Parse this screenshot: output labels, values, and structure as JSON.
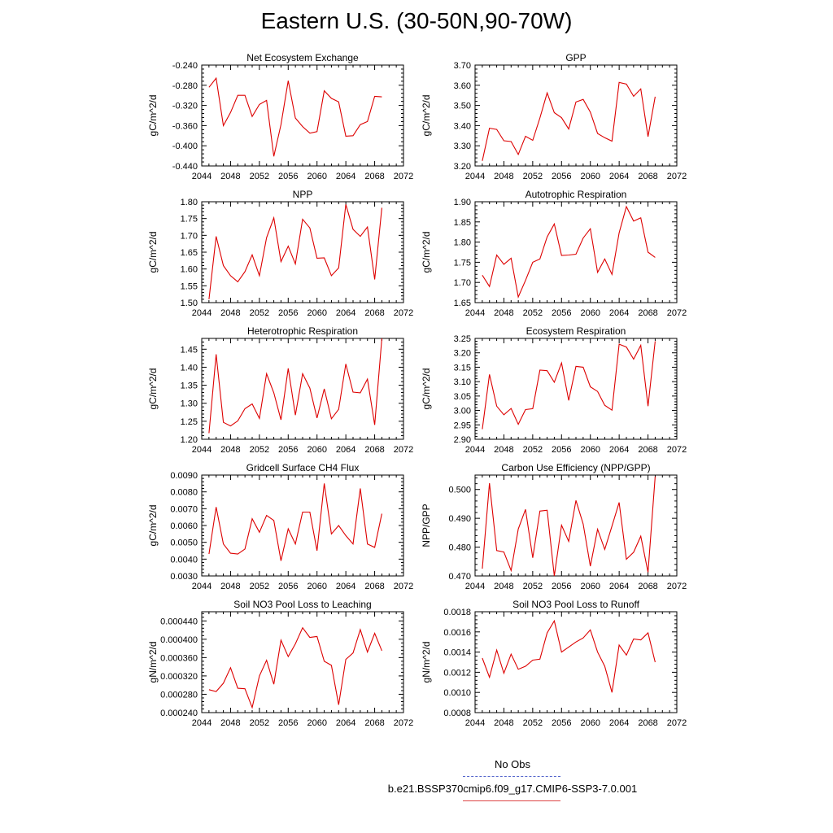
{
  "title": "Eastern U.S. (30-50N,90-70W)",
  "legend": {
    "obs_label": "No Obs",
    "model_label": "b.e21.BSSP370cmip6.f09_g17.CMIP6-SSP3-7.0.001",
    "obs_color": "#5566cc",
    "model_color": "#dd0000"
  },
  "chart_data": [
    {
      "type": "line",
      "title": "Net Ecosystem Exchange",
      "ylabel": "gC/m^2/d",
      "xlim": [
        2044,
        2072
      ],
      "ylim": [
        -0.44,
        -0.24
      ],
      "xticks": [
        2044,
        2048,
        2052,
        2056,
        2060,
        2064,
        2068,
        2072
      ],
      "xtick_labels": [
        "2044",
        "2048",
        "2052",
        "2056",
        "2060",
        "2064",
        "2068",
        "2072"
      ],
      "yticks": [
        -0.44,
        -0.4,
        -0.36,
        -0.32,
        -0.28,
        -0.24
      ],
      "ytick_labels": [
        "-0.440",
        "-0.400",
        "-0.360",
        "-0.320",
        "-0.280",
        "-0.240"
      ],
      "yminor": 4,
      "x": [
        2045,
        2046,
        2047,
        2048,
        2049,
        2050,
        2051,
        2052,
        2053,
        2054,
        2055,
        2056,
        2057,
        2058,
        2059,
        2060,
        2061,
        2062,
        2063,
        2064,
        2065,
        2066,
        2067,
        2068,
        2069
      ],
      "series": [
        {
          "color": "#dd0000",
          "values": [
            -0.284,
            -0.266,
            -0.36,
            -0.334,
            -0.3,
            -0.3,
            -0.342,
            -0.318,
            -0.31,
            -0.421,
            -0.358,
            -0.271,
            -0.345,
            -0.362,
            -0.375,
            -0.372,
            -0.291,
            -0.306,
            -0.313,
            -0.381,
            -0.38,
            -0.358,
            -0.352,
            -0.302,
            -0.303
          ]
        }
      ]
    },
    {
      "type": "line",
      "title": "GPP",
      "ylabel": "gC/m^2/d",
      "xlim": [
        2044,
        2072
      ],
      "ylim": [
        3.2,
        3.7
      ],
      "xticks": [
        2044,
        2048,
        2052,
        2056,
        2060,
        2064,
        2068,
        2072
      ],
      "xtick_labels": [
        "2044",
        "2048",
        "2052",
        "2056",
        "2060",
        "2064",
        "2068",
        "2072"
      ],
      "yticks": [
        3.2,
        3.3,
        3.4,
        3.5,
        3.6,
        3.7
      ],
      "ytick_labels": [
        "3.20",
        "3.30",
        "3.40",
        "3.50",
        "3.60",
        "3.70"
      ],
      "yminor": 4,
      "x": [
        2045,
        2046,
        2047,
        2048,
        2049,
        2050,
        2051,
        2052,
        2053,
        2054,
        2055,
        2056,
        2057,
        2058,
        2059,
        2060,
        2061,
        2062,
        2063,
        2064,
        2065,
        2066,
        2067,
        2068,
        2069
      ],
      "series": [
        {
          "color": "#dd0000",
          "values": [
            3.225,
            3.387,
            3.381,
            3.325,
            3.321,
            3.257,
            3.347,
            3.327,
            3.438,
            3.562,
            3.464,
            3.439,
            3.383,
            3.517,
            3.53,
            3.467,
            3.361,
            3.34,
            3.323,
            3.614,
            3.606,
            3.545,
            3.582,
            3.345,
            3.543
          ]
        }
      ]
    },
    {
      "type": "line",
      "title": "NPP",
      "ylabel": "gC/m^2/d",
      "xlim": [
        2044,
        2072
      ],
      "ylim": [
        1.5,
        1.8
      ],
      "xticks": [
        2044,
        2048,
        2052,
        2056,
        2060,
        2064,
        2068,
        2072
      ],
      "xtick_labels": [
        "2044",
        "2048",
        "2052",
        "2056",
        "2060",
        "2064",
        "2068",
        "2072"
      ],
      "yticks": [
        1.5,
        1.55,
        1.6,
        1.65,
        1.7,
        1.75,
        1.8
      ],
      "ytick_labels": [
        "1.50",
        "1.55",
        "1.60",
        "1.65",
        "1.70",
        "1.75",
        "1.80"
      ],
      "yminor": 4,
      "x": [
        2045,
        2046,
        2047,
        2048,
        2049,
        2050,
        2051,
        2052,
        2053,
        2054,
        2055,
        2056,
        2057,
        2058,
        2059,
        2060,
        2061,
        2062,
        2063,
        2064,
        2065,
        2066,
        2067,
        2068,
        2069
      ],
      "series": [
        {
          "color": "#dd0000",
          "values": [
            1.51,
            1.697,
            1.61,
            1.58,
            1.562,
            1.592,
            1.642,
            1.58,
            1.693,
            1.752,
            1.622,
            1.668,
            1.615,
            1.748,
            1.722,
            1.632,
            1.633,
            1.58,
            1.603,
            1.792,
            1.718,
            1.697,
            1.725,
            1.569,
            1.782
          ]
        }
      ]
    },
    {
      "type": "line",
      "title": "Autotrophic Respiration",
      "ylabel": "gC/m^2/d",
      "xlim": [
        2044,
        2072
      ],
      "ylim": [
        1.65,
        1.9
      ],
      "xticks": [
        2044,
        2048,
        2052,
        2056,
        2060,
        2064,
        2068,
        2072
      ],
      "xtick_labels": [
        "2044",
        "2048",
        "2052",
        "2056",
        "2060",
        "2064",
        "2068",
        "2072"
      ],
      "yticks": [
        1.65,
        1.7,
        1.75,
        1.8,
        1.85,
        1.9
      ],
      "ytick_labels": [
        "1.65",
        "1.70",
        "1.75",
        "1.80",
        "1.85",
        "1.90"
      ],
      "yminor": 4,
      "x": [
        2045,
        2046,
        2047,
        2048,
        2049,
        2050,
        2051,
        2052,
        2053,
        2054,
        2055,
        2056,
        2057,
        2058,
        2059,
        2060,
        2061,
        2062,
        2063,
        2064,
        2065,
        2066,
        2067,
        2068,
        2069
      ],
      "series": [
        {
          "color": "#dd0000",
          "values": [
            1.718,
            1.69,
            1.768,
            1.745,
            1.76,
            1.664,
            1.705,
            1.75,
            1.758,
            1.813,
            1.845,
            1.767,
            1.768,
            1.77,
            1.81,
            1.833,
            1.725,
            1.758,
            1.72,
            1.823,
            1.888,
            1.852,
            1.86,
            1.775,
            1.762
          ]
        }
      ]
    },
    {
      "type": "line",
      "title": "Heterotrophic Respiration",
      "ylabel": "gC/m^2/d",
      "xlim": [
        2044,
        2072
      ],
      "ylim": [
        1.2,
        1.48
      ],
      "xticks": [
        2044,
        2048,
        2052,
        2056,
        2060,
        2064,
        2068,
        2072
      ],
      "xtick_labels": [
        "2044",
        "2048",
        "2052",
        "2056",
        "2060",
        "2064",
        "2068",
        "2072"
      ],
      "yticks": [
        1.2,
        1.25,
        1.3,
        1.35,
        1.4,
        1.45
      ],
      "ytick_labels": [
        "1.20",
        "1.25",
        "1.30",
        "1.35",
        "1.40",
        "1.45"
      ],
      "yminor": 4,
      "x": [
        2045,
        2046,
        2047,
        2048,
        2049,
        2050,
        2051,
        2052,
        2053,
        2054,
        2055,
        2056,
        2057,
        2058,
        2059,
        2060,
        2061,
        2062,
        2063,
        2064,
        2065,
        2066,
        2067,
        2068,
        2069
      ],
      "series": [
        {
          "color": "#dd0000",
          "values": [
            1.217,
            1.436,
            1.247,
            1.237,
            1.251,
            1.285,
            1.298,
            1.258,
            1.382,
            1.329,
            1.254,
            1.397,
            1.267,
            1.382,
            1.342,
            1.259,
            1.34,
            1.257,
            1.283,
            1.409,
            1.331,
            1.329,
            1.367,
            1.24,
            1.48
          ]
        }
      ]
    },
    {
      "type": "line",
      "title": "Ecosystem Respiration",
      "ylabel": "gC/m^2/d",
      "xlim": [
        2044,
        2072
      ],
      "ylim": [
        2.9,
        3.25
      ],
      "xticks": [
        2044,
        2048,
        2052,
        2056,
        2060,
        2064,
        2068,
        2072
      ],
      "xtick_labels": [
        "2044",
        "2048",
        "2052",
        "2056",
        "2060",
        "2064",
        "2068",
        "2072"
      ],
      "yticks": [
        2.9,
        2.95,
        3.0,
        3.05,
        3.1,
        3.15,
        3.2,
        3.25
      ],
      "ytick_labels": [
        "2.90",
        "2.95",
        "3.00",
        "3.05",
        "3.10",
        "3.15",
        "3.20",
        "3.25"
      ],
      "yminor": 4,
      "x": [
        2045,
        2046,
        2047,
        2048,
        2049,
        2050,
        2051,
        2052,
        2053,
        2054,
        2055,
        2056,
        2057,
        2058,
        2059,
        2060,
        2061,
        2062,
        2063,
        2064,
        2065,
        2066,
        2067,
        2068,
        2069
      ],
      "series": [
        {
          "color": "#dd0000",
          "values": [
            2.935,
            3.125,
            3.015,
            2.985,
            3.007,
            2.952,
            3.003,
            3.006,
            3.14,
            3.138,
            3.098,
            3.165,
            3.035,
            3.153,
            3.15,
            3.082,
            3.066,
            3.018,
            3.001,
            3.23,
            3.22,
            3.178,
            3.226,
            3.015,
            3.24
          ]
        }
      ]
    },
    {
      "type": "line",
      "title": "Gridcell Surface CH4 Flux",
      "ylabel": "gC/m^2/d",
      "xlim": [
        2044,
        2072
      ],
      "ylim": [
        0.003,
        0.009
      ],
      "xticks": [
        2044,
        2048,
        2052,
        2056,
        2060,
        2064,
        2068,
        2072
      ],
      "xtick_labels": [
        "2044",
        "2048",
        "2052",
        "2056",
        "2060",
        "2064",
        "2068",
        "2072"
      ],
      "yticks": [
        0.003,
        0.004,
        0.005,
        0.006,
        0.007,
        0.008,
        0.009
      ],
      "ytick_labels": [
        "0.0030",
        "0.0040",
        "0.0050",
        "0.0060",
        "0.0070",
        "0.0080",
        "0.0090"
      ],
      "yminor": 4,
      "x": [
        2045,
        2046,
        2047,
        2048,
        2049,
        2050,
        2051,
        2052,
        2053,
        2054,
        2055,
        2056,
        2057,
        2058,
        2059,
        2060,
        2061,
        2062,
        2063,
        2064,
        2065,
        2066,
        2067,
        2068,
        2069
      ],
      "series": [
        {
          "color": "#dd0000",
          "values": [
            0.0043,
            0.0071,
            0.0049,
            0.00435,
            0.0043,
            0.0046,
            0.0064,
            0.0056,
            0.0066,
            0.0063,
            0.0039,
            0.0058,
            0.0049,
            0.0068,
            0.0068,
            0.0045,
            0.0085,
            0.0055,
            0.006,
            0.0054,
            0.0049,
            0.0082,
            0.0049,
            0.0047,
            0.0067
          ]
        }
      ]
    },
    {
      "type": "line",
      "title": "Carbon Use Efficiency (NPP/GPP)",
      "ylabel": "NPP/GPP",
      "xlim": [
        2044,
        2072
      ],
      "ylim": [
        0.47,
        0.505
      ],
      "xticks": [
        2044,
        2048,
        2052,
        2056,
        2060,
        2064,
        2068,
        2072
      ],
      "xtick_labels": [
        "2044",
        "2048",
        "2052",
        "2056",
        "2060",
        "2064",
        "2068",
        "2072"
      ],
      "yticks": [
        0.47,
        0.48,
        0.49,
        0.5
      ],
      "ytick_labels": [
        "0.470",
        "0.480",
        "0.490",
        "0.500"
      ],
      "yminor": 4,
      "x": [
        2045,
        2046,
        2047,
        2048,
        2049,
        2050,
        2051,
        2052,
        2053,
        2054,
        2055,
        2056,
        2057,
        2058,
        2059,
        2060,
        2061,
        2062,
        2063,
        2064,
        2065,
        2066,
        2067,
        2068,
        2069
      ],
      "series": [
        {
          "color": "#dd0000",
          "values": [
            0.4725,
            0.5022,
            0.4788,
            0.4783,
            0.4719,
            0.4863,
            0.4931,
            0.4763,
            0.4925,
            0.4928,
            0.47,
            0.4876,
            0.482,
            0.4962,
            0.488,
            0.4734,
            0.4862,
            0.4792,
            0.4873,
            0.4955,
            0.4758,
            0.4782,
            0.4838,
            0.4713,
            0.5045
          ]
        }
      ]
    },
    {
      "type": "line",
      "title": "Soil NO3 Pool Loss to Leaching",
      "ylabel": "gN/m^2/d",
      "xlim": [
        2044,
        2072
      ],
      "ylim": [
        0.00024,
        0.00046
      ],
      "xticks": [
        2044,
        2048,
        2052,
        2056,
        2060,
        2064,
        2068,
        2072
      ],
      "xtick_labels": [
        "2044",
        "2048",
        "2052",
        "2056",
        "2060",
        "2064",
        "2068",
        "2072"
      ],
      "yticks": [
        0.00024,
        0.00028,
        0.00032,
        0.00036,
        0.0004,
        0.00044
      ],
      "ytick_labels": [
        "0.000240",
        "0.000280",
        "0.000320",
        "0.000360",
        "0.000400",
        "0.000440"
      ],
      "yminor": 4,
      "x": [
        2045,
        2046,
        2047,
        2048,
        2049,
        2050,
        2051,
        2052,
        2053,
        2054,
        2055,
        2056,
        2057,
        2058,
        2059,
        2060,
        2061,
        2062,
        2063,
        2064,
        2065,
        2066,
        2067,
        2068,
        2069
      ],
      "series": [
        {
          "color": "#dd0000",
          "values": [
            0.00029,
            0.000286,
            0.000304,
            0.000338,
            0.000293,
            0.000292,
            0.000251,
            0.00032,
            0.000354,
            0.000302,
            0.000398,
            0.000362,
            0.00039,
            0.000425,
            0.000404,
            0.000406,
            0.000352,
            0.000343,
            0.000257,
            0.000356,
            0.00037,
            0.000421,
            0.000372,
            0.000413,
            0.000375
          ]
        }
      ]
    },
    {
      "type": "line",
      "title": "Soil NO3 Pool Loss to Runoff",
      "ylabel": "gN/m^2/d",
      "xlim": [
        2044,
        2072
      ],
      "ylim": [
        0.0008,
        0.0018
      ],
      "xticks": [
        2044,
        2048,
        2052,
        2056,
        2060,
        2064,
        2068,
        2072
      ],
      "xtick_labels": [
        "2044",
        "2048",
        "2052",
        "2056",
        "2060",
        "2064",
        "2068",
        "2072"
      ],
      "yticks": [
        0.0008,
        0.001,
        0.0012,
        0.0014,
        0.0016,
        0.0018
      ],
      "ytick_labels": [
        "0.0008",
        "0.0010",
        "0.0012",
        "0.0014",
        "0.0016",
        "0.0018"
      ],
      "yminor": 4,
      "x": [
        2045,
        2046,
        2047,
        2048,
        2049,
        2050,
        2051,
        2052,
        2053,
        2054,
        2055,
        2056,
        2057,
        2058,
        2059,
        2060,
        2061,
        2062,
        2063,
        2064,
        2065,
        2066,
        2067,
        2068,
        2069
      ],
      "series": [
        {
          "color": "#dd0000",
          "values": [
            0.00134,
            0.00115,
            0.00142,
            0.00119,
            0.00138,
            0.00123,
            0.00126,
            0.00132,
            0.00133,
            0.00159,
            0.00171,
            0.0014,
            0.00145,
            0.0015,
            0.00154,
            0.00162,
            0.0014,
            0.00126,
            0.001,
            0.00147,
            0.00137,
            0.00153,
            0.00152,
            0.00159,
            0.0013
          ]
        }
      ]
    }
  ]
}
